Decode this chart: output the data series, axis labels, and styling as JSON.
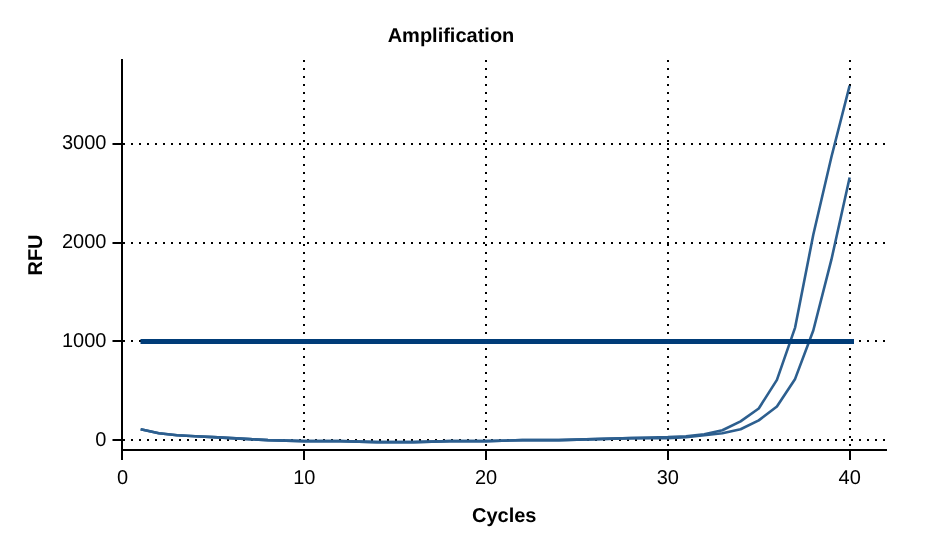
{
  "chart_data": {
    "type": "line",
    "title": "Amplification",
    "xlabel": "Cycles",
    "ylabel": "RFU",
    "x": [
      1,
      2,
      3,
      4,
      5,
      6,
      7,
      8,
      10,
      12,
      14,
      16,
      18,
      20,
      22,
      24,
      26,
      28,
      30,
      31,
      32,
      33,
      34,
      35,
      36,
      37,
      38,
      39,
      40
    ],
    "series": [
      {
        "color": "#2d5f8f",
        "values": [
          110,
          70,
          50,
          40,
          30,
          20,
          10,
          0,
          -10,
          -10,
          -20,
          -20,
          -10,
          -10,
          0,
          0,
          10,
          20,
          30,
          40,
          60,
          100,
          190,
          320,
          610,
          1140,
          2080,
          2870,
          3590
        ]
      },
      {
        "color": "#2d5f8f",
        "values": [
          110,
          70,
          50,
          40,
          30,
          20,
          10,
          0,
          -10,
          -10,
          -20,
          -20,
          -10,
          -10,
          0,
          0,
          10,
          20,
          20,
          30,
          50,
          70,
          110,
          200,
          340,
          620,
          1110,
          1830,
          2660
        ]
      }
    ],
    "xlim": [
      0,
      42
    ],
    "xticks": [
      0,
      10,
      20,
      30,
      40
    ],
    "ylim": [
      -100,
      3850
    ],
    "yticks": [
      0,
      1000,
      2000,
      3000
    ],
    "grid": true,
    "line_style": "solid",
    "marker": "none",
    "ref_lines": [
      {
        "axis": "y",
        "value": 1000,
        "color": "#003c78",
        "line_style": "solid"
      }
    ]
  }
}
